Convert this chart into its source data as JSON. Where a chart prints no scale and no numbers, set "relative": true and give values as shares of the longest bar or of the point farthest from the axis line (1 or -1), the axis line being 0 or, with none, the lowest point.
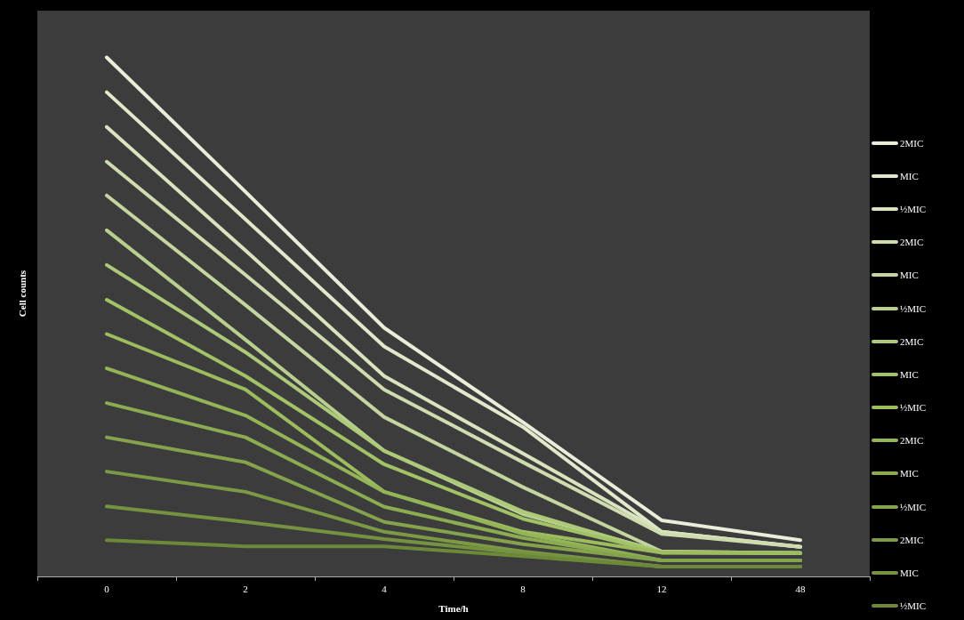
{
  "chart_data": {
    "type": "line",
    "relative": true,
    "xlabel": "Time/h",
    "ylabel": "Cell counts",
    "categories": [
      "0",
      "2",
      "4",
      "8",
      "12",
      "48"
    ],
    "legend": "right",
    "marker": "none",
    "series": [
      {
        "name": "2MIC",
        "color": "#e9edda",
        "values": [
          1,
          0.741,
          0.479,
          0.297,
          0.108,
          0.07
        ]
      },
      {
        "name": "MIC",
        "color": "#e1e8cc",
        "values": [
          0.933,
          0.688,
          0.443,
          0.288,
          0.086,
          0.057
        ]
      },
      {
        "name": "½MIC",
        "color": "#d9e3bf",
        "values": [
          0.866,
          0.628,
          0.386,
          0.237,
          0.086,
          0.057
        ]
      },
      {
        "name": "2MIC",
        "color": "#cfdcb0",
        "values": [
          0.799,
          0.581,
          0.36,
          0.22,
          0.082,
          0.057
        ]
      },
      {
        "name": "MIC",
        "color": "#c4d5a0",
        "values": [
          0.734,
          0.523,
          0.307,
          0.172,
          0.048,
          0.045
        ]
      },
      {
        "name": "½MIC",
        "color": "#b9cf8d",
        "values": [
          0.667,
          0.456,
          0.242,
          0.12,
          0.048,
          0.045
        ]
      },
      {
        "name": "2MIC",
        "color": "#adc97a",
        "values": [
          0.6,
          0.432,
          0.242,
          0.125,
          0.046,
          0.045
        ]
      },
      {
        "name": "MIC",
        "color": "#a2c266",
        "values": [
          0.533,
          0.386,
          0.216,
          0.111,
          0.046,
          0.045
        ]
      },
      {
        "name": "½MIC",
        "color": "#9cbc5e",
        "values": [
          0.467,
          0.36,
          0.163,
          0.086,
          0.046,
          0.045
        ]
      },
      {
        "name": "2MIC",
        "color": "#94b458",
        "values": [
          0.401,
          0.31,
          0.163,
          0.082,
          0.031,
          0.031
        ]
      },
      {
        "name": "MIC",
        "color": "#8cac52",
        "values": [
          0.334,
          0.268,
          0.134,
          0.074,
          0.031,
          0.031
        ]
      },
      {
        "name": "½MIC",
        "color": "#84a34c",
        "values": [
          0.268,
          0.22,
          0.105,
          0.062,
          0.031,
          0.031
        ]
      },
      {
        "name": "2MIC",
        "color": "#7c9a46",
        "values": [
          0.202,
          0.163,
          0.086,
          0.048,
          0.019,
          0.019
        ]
      },
      {
        "name": "MIC",
        "color": "#749240",
        "values": [
          0.135,
          0.105,
          0.072,
          0.045,
          0.019,
          0.019
        ]
      },
      {
        "name": "½MIC",
        "color": "#6c893a",
        "values": [
          0.07,
          0.058,
          0.058,
          0.039,
          0.019,
          0.019
        ]
      }
    ]
  }
}
